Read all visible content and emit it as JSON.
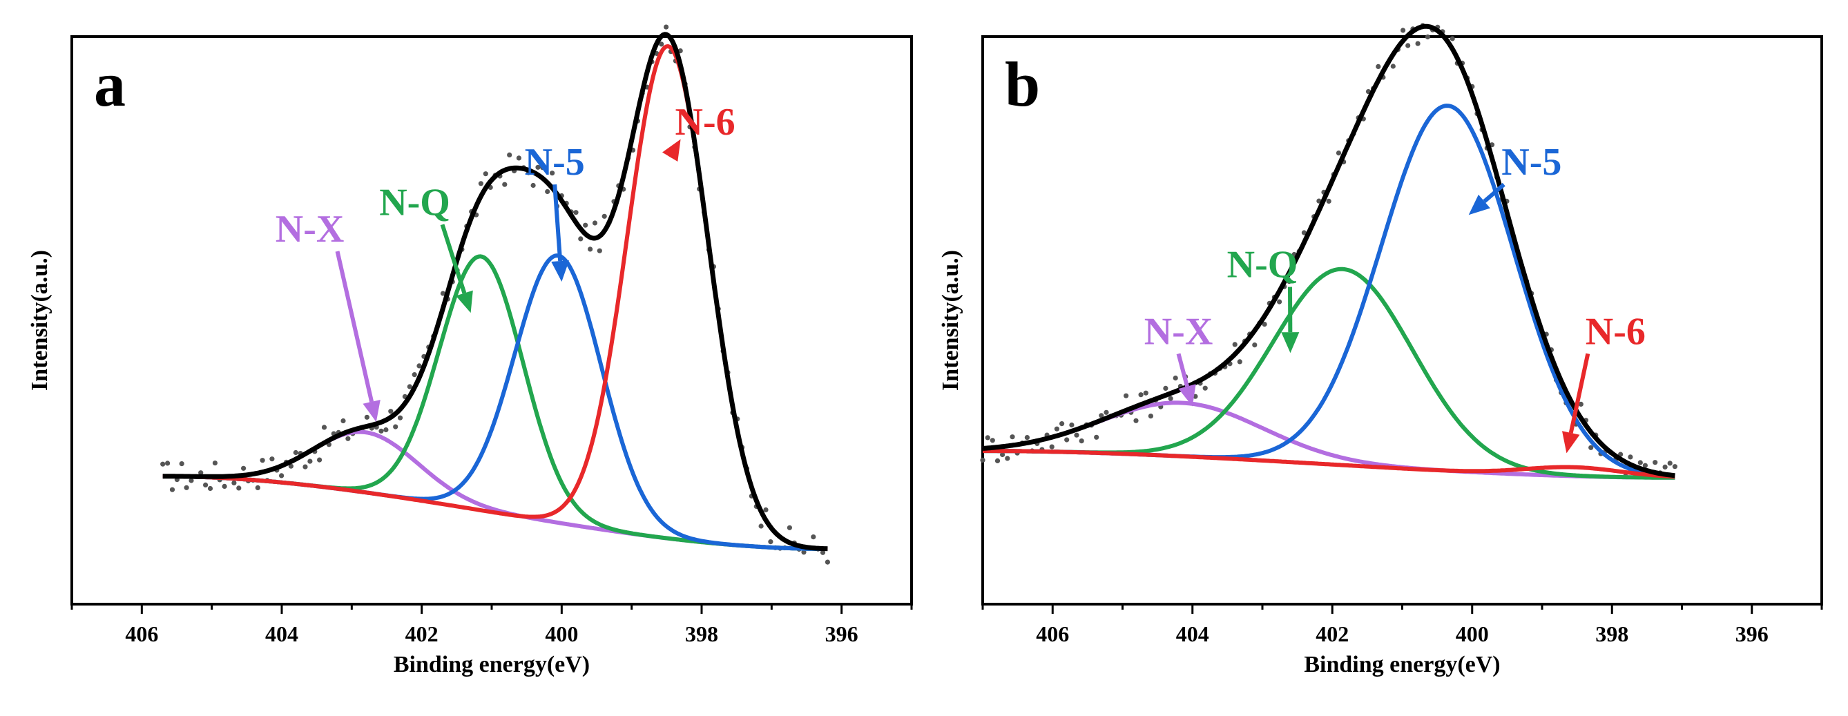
{
  "panels": [
    {
      "panel_label": "a",
      "chart_data": {
        "type": "line",
        "xlabel": "Binding energy(eV)",
        "ylabel": "Intensity(a.u.)",
        "xlim": [
          407,
          395
        ],
        "x_reversed": true,
        "x_ticks": [
          406,
          404,
          402,
          400,
          398,
          396
        ],
        "y_ticks_shown": false,
        "ylim": [
          0,
          1
        ],
        "baseline": {
          "start": 0.163,
          "end": 0.0
        },
        "series": [
          {
            "name": "N-X",
            "color": "#b36ee0",
            "center": 402.8,
            "amplitude": 0.135,
            "sigma": 0.75
          },
          {
            "name": "N-Q",
            "color": "#22a64e",
            "center": 401.15,
            "amplitude": 0.57,
            "sigma": 0.6
          },
          {
            "name": "N-5",
            "color": "#1a66d6",
            "center": 400.05,
            "amplitude": 0.6,
            "sigma": 0.62
          },
          {
            "name": "N-6",
            "color": "#e8282a",
            "center": 398.48,
            "amplitude": 1.105,
            "sigma": 0.58
          }
        ],
        "envelope_color": "#000000",
        "data_points_color": "#555555",
        "x_range_data": [
          405.7,
          396.2
        ],
        "annotations": [
          {
            "text": "N-X",
            "color": "#b36ee0",
            "label_x": 403.6,
            "label_y": 0.69,
            "arrow_x": 402.65,
            "arrow_y": 0.285
          },
          {
            "text": "N-Q",
            "color": "#22a64e",
            "label_x": 402.1,
            "label_y": 0.75,
            "arrow_x": 401.3,
            "arrow_y": 0.53
          },
          {
            "text": "N-5",
            "color": "#1a66d6",
            "label_x": 400.1,
            "label_y": 0.84,
            "arrow_x": 400.0,
            "arrow_y": 0.6
          },
          {
            "text": "N-6",
            "color": "#e8282a",
            "label_x": 397.95,
            "label_y": 0.93,
            "arrow_x": 398.3,
            "arrow_y": 0.92
          }
        ]
      }
    },
    {
      "panel_label": "b",
      "chart_data": {
        "type": "line",
        "xlabel": "Binding energy(eV)",
        "ylabel": "Intensity(a.u.)",
        "xlim": [
          407,
          395
        ],
        "x_reversed": true,
        "x_ticks": [
          406,
          404,
          402,
          400,
          398,
          396
        ],
        "y_ticks_shown": false,
        "ylim": [
          0,
          1
        ],
        "baseline": {
          "start": 0.22,
          "end": 0.16
        },
        "series": [
          {
            "name": "N-X",
            "color": "#b36ee0",
            "center": 404.15,
            "amplitude": 0.12,
            "sigma": 1.15
          },
          {
            "name": "N-Q",
            "color": "#22a64e",
            "center": 401.85,
            "amplitude": 0.44,
            "sigma": 1.0
          },
          {
            "name": "N-5",
            "color": "#1a66d6",
            "center": 400.35,
            "amplitude": 0.82,
            "sigma": 0.95
          },
          {
            "name": "N-6",
            "color": "#e8282a",
            "center": 398.55,
            "amplitude": 0.02,
            "sigma": 0.7
          }
        ],
        "envelope_color": "#000000",
        "data_points_color": "#555555",
        "x_range_data": [
          407.0,
          397.1
        ],
        "annotations": [
          {
            "text": "N-X",
            "color": "#b36ee0",
            "label_x": 404.2,
            "label_y": 0.46,
            "arrow_x": 404.0,
            "arrow_y": 0.32
          },
          {
            "text": "N-Q",
            "color": "#22a64e",
            "label_x": 403.0,
            "label_y": 0.61,
            "arrow_x": 402.6,
            "arrow_y": 0.44
          },
          {
            "text": "N-5",
            "color": "#1a66d6",
            "label_x": 399.15,
            "label_y": 0.84,
            "arrow_x": 400.05,
            "arrow_y": 0.75
          },
          {
            "text": "N-6",
            "color": "#e8282a",
            "label_x": 397.95,
            "label_y": 0.46,
            "arrow_x": 398.65,
            "arrow_y": 0.215
          }
        ]
      }
    }
  ]
}
